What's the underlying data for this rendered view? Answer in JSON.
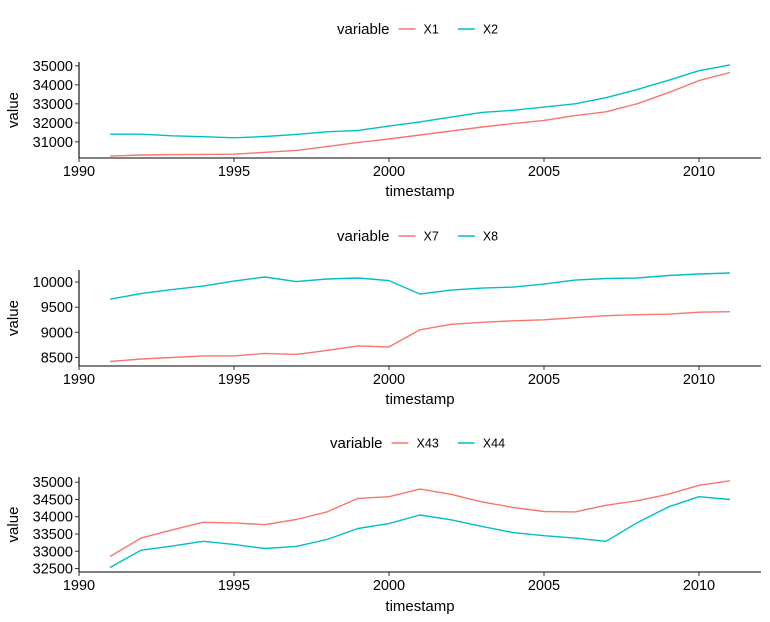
{
  "chart_data": [
    {
      "type": "line",
      "legend_title": "variable",
      "legend_position": "top",
      "xlabel": "timestamp",
      "ylabel": "value",
      "xlim": [
        1990,
        2012
      ],
      "ylim": [
        30150,
        35200
      ],
      "x_ticks": [
        1990,
        1995,
        2000,
        2005,
        2010
      ],
      "y_ticks": [
        31000,
        32000,
        33000,
        34000,
        35000
      ],
      "x": [
        1991,
        1992,
        1993,
        1994,
        1995,
        1996,
        1997,
        1998,
        1999,
        2000,
        2001,
        2002,
        2003,
        2004,
        2005,
        2006,
        2007,
        2008,
        2009,
        2010,
        2011
      ],
      "series": [
        {
          "name": "X1",
          "color": "#F8766D",
          "values": [
            30250,
            30310,
            30330,
            30340,
            30350,
            30450,
            30550,
            30750,
            30970,
            31150,
            31360,
            31570,
            31780,
            31960,
            32130,
            32380,
            32580,
            33000,
            33580,
            34220,
            34650
          ]
        },
        {
          "name": "X2",
          "color": "#00BFC4",
          "values": [
            31400,
            31400,
            31320,
            31270,
            31210,
            31280,
            31390,
            31530,
            31600,
            31830,
            32050,
            32300,
            32550,
            32660,
            32830,
            33000,
            33320,
            33750,
            34230,
            34740,
            35050
          ]
        }
      ]
    },
    {
      "type": "line",
      "legend_title": "variable",
      "legend_position": "top",
      "xlabel": "timestamp",
      "ylabel": "value",
      "xlim": [
        1990,
        2012
      ],
      "ylim": [
        8330,
        10240
      ],
      "x_ticks": [
        1990,
        1995,
        2000,
        2005,
        2010
      ],
      "y_ticks": [
        8500,
        9000,
        9500,
        10000
      ],
      "x": [
        1991,
        1992,
        1993,
        1994,
        1995,
        1996,
        1997,
        1998,
        1999,
        2000,
        2001,
        2002,
        2003,
        2004,
        2005,
        2006,
        2007,
        2008,
        2009,
        2010,
        2011
      ],
      "series": [
        {
          "name": "X7",
          "color": "#F8766D",
          "values": [
            8420,
            8470,
            8500,
            8530,
            8530,
            8580,
            8560,
            8640,
            8730,
            8710,
            9050,
            9160,
            9200,
            9230,
            9250,
            9290,
            9330,
            9350,
            9360,
            9400,
            9410
          ]
        },
        {
          "name": "X8",
          "color": "#00BFC4",
          "values": [
            9660,
            9770,
            9850,
            9920,
            10020,
            10100,
            10010,
            10060,
            10080,
            10030,
            9760,
            9840,
            9880,
            9900,
            9960,
            10040,
            10070,
            10080,
            10130,
            10160,
            10180
          ]
        }
      ]
    },
    {
      "type": "line",
      "legend_title": "variable",
      "legend_position": "top",
      "xlabel": "timestamp",
      "ylabel": "value",
      "xlim": [
        1990,
        2012
      ],
      "ylim": [
        32400,
        35150
      ],
      "x_ticks": [
        1990,
        1995,
        2000,
        2005,
        2010
      ],
      "y_ticks": [
        32500,
        33000,
        33500,
        34000,
        34500,
        35000
      ],
      "x": [
        1991,
        1992,
        1993,
        1994,
        1995,
        1996,
        1997,
        1998,
        1999,
        2000,
        2001,
        2002,
        2003,
        2004,
        2005,
        2006,
        2007,
        2008,
        2009,
        2010,
        2011
      ],
      "series": [
        {
          "name": "X43",
          "color": "#F8766D",
          "values": [
            32850,
            33380,
            33620,
            33840,
            33820,
            33770,
            33920,
            34140,
            34530,
            34580,
            34800,
            34650,
            34430,
            34270,
            34150,
            34140,
            34330,
            34460,
            34650,
            34910,
            35040
          ]
        },
        {
          "name": "X44",
          "color": "#00BFC4",
          "values": [
            32530,
            33030,
            33150,
            33290,
            33200,
            33080,
            33140,
            33340,
            33660,
            33800,
            34050,
            33910,
            33720,
            33540,
            33450,
            33380,
            33290,
            33820,
            34280,
            34580,
            34500
          ]
        }
      ]
    }
  ]
}
